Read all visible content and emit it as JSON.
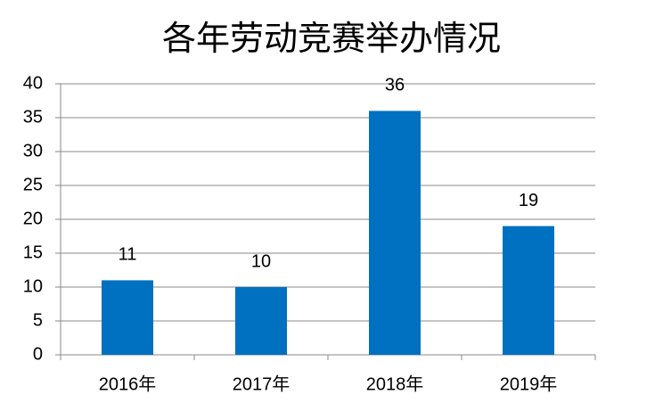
{
  "chart_data": {
    "type": "bar",
    "title": "各年劳动竞赛举办情况",
    "categories": [
      "2016年",
      "2017年",
      "2018年",
      "2019年"
    ],
    "values": [
      11,
      10,
      36,
      19
    ],
    "color": "#0070c0",
    "ylim": [
      0,
      40
    ],
    "yticks": [
      0,
      5,
      10,
      15,
      20,
      25,
      30,
      35,
      40
    ],
    "grid": true
  }
}
